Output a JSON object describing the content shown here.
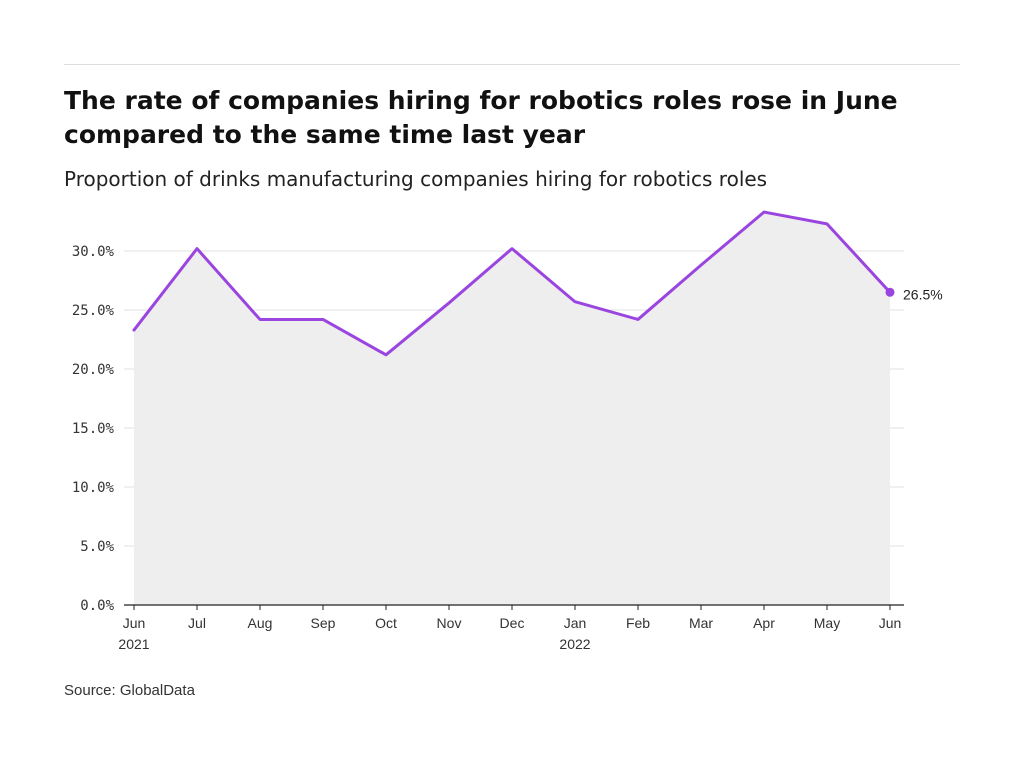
{
  "title": "The rate of companies hiring for robotics roles rose in June compared to the same time last year",
  "subtitle": "Proportion of drinks manufacturing companies hiring for robotics roles",
  "source": "Source: GlobalData",
  "colors": {
    "line": "#9b45e0",
    "area": "#efeeef",
    "grid": "#e2e2e2",
    "axis": "#222222"
  },
  "chart_data": {
    "type": "area",
    "x_labels": [
      [
        "Jun",
        "2021"
      ],
      [
        "Jul"
      ],
      [
        "Aug"
      ],
      [
        "Sep"
      ],
      [
        "Oct"
      ],
      [
        "Nov"
      ],
      [
        "Dec"
      ],
      [
        "Jan",
        "2022"
      ],
      [
        "Feb"
      ],
      [
        "Mar"
      ],
      [
        "Apr"
      ],
      [
        "May"
      ],
      [
        "Jun"
      ]
    ],
    "series": [
      {
        "values": [
          23.3,
          30.2,
          24.2,
          24.2,
          21.2,
          25.6,
          30.2,
          25.7,
          24.2,
          28.8,
          33.3,
          32.3,
          26.5
        ]
      }
    ],
    "y_ticks": [
      "0.0%",
      "5.0%",
      "10.0%",
      "15.0%",
      "20.0%",
      "25.0%",
      "30.0%"
    ],
    "y_tick_values": [
      0,
      5,
      10,
      15,
      20,
      25,
      30
    ],
    "ylim": [
      0,
      34
    ],
    "end_label": "26.5%",
    "grid": true
  }
}
